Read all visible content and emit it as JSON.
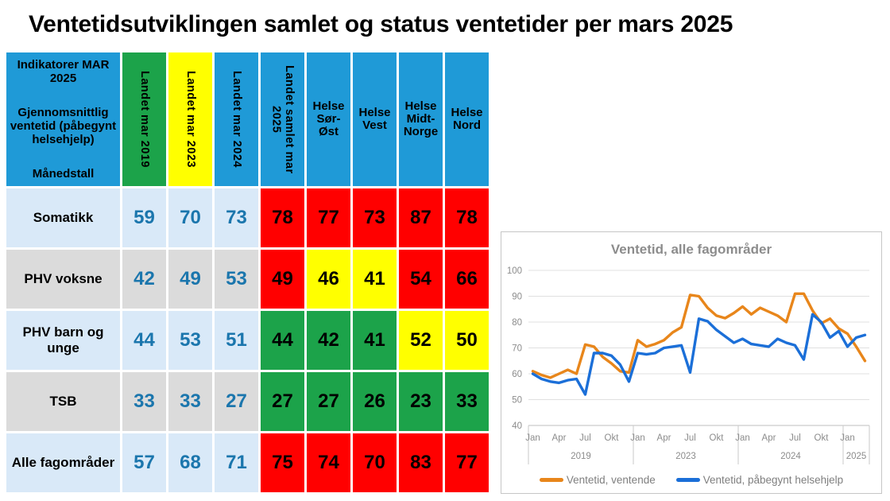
{
  "title": "Ventetidsutviklingen samlet og status ventetider per mars 2025",
  "table": {
    "header": {
      "indicator_lines": [
        "Indikatorer MAR 2025",
        "Gjennomsnittlig ventetid (påbegynt helsehjelp)",
        "Månedstall"
      ],
      "columns": [
        {
          "label": "Landet mar 2019",
          "bg": "green"
        },
        {
          "label": "Landet mar 2023",
          "bg": "yellow"
        },
        {
          "label": "Landet mar 2024",
          "bg": "blue"
        },
        {
          "label": "Landet samlet mar 2025",
          "bg": "blue"
        },
        {
          "label": "Helse Sør-Øst",
          "bg": "blue"
        },
        {
          "label": "Helse Vest",
          "bg": "blue"
        },
        {
          "label": "Helse Midt-Norge",
          "bg": "blue"
        },
        {
          "label": "Helse Nord",
          "bg": "blue"
        }
      ]
    },
    "rows": [
      {
        "label": "Somatikk",
        "zebra": "blue",
        "baseline": [
          "59",
          "70",
          "73"
        ],
        "status": [
          {
            "value": "78",
            "color": "red"
          },
          {
            "value": "77",
            "color": "red"
          },
          {
            "value": "73",
            "color": "red"
          },
          {
            "value": "87",
            "color": "red"
          },
          {
            "value": "78",
            "color": "red"
          }
        ]
      },
      {
        "label": "PHV voksne",
        "zebra": "gray",
        "baseline": [
          "42",
          "49",
          "53"
        ],
        "status": [
          {
            "value": "49",
            "color": "red"
          },
          {
            "value": "46",
            "color": "yellow"
          },
          {
            "value": "41",
            "color": "yellow"
          },
          {
            "value": "54",
            "color": "red"
          },
          {
            "value": "66",
            "color": "red"
          }
        ]
      },
      {
        "label": "PHV barn og unge",
        "zebra": "blue",
        "baseline": [
          "44",
          "53",
          "51"
        ],
        "status": [
          {
            "value": "44",
            "color": "green"
          },
          {
            "value": "42",
            "color": "green"
          },
          {
            "value": "41",
            "color": "green"
          },
          {
            "value": "52",
            "color": "yellow"
          },
          {
            "value": "50",
            "color": "yellow"
          }
        ]
      },
      {
        "label": "TSB",
        "zebra": "gray",
        "baseline": [
          "33",
          "33",
          "27"
        ],
        "status": [
          {
            "value": "27",
            "color": "green"
          },
          {
            "value": "27",
            "color": "green"
          },
          {
            "value": "26",
            "color": "green"
          },
          {
            "value": "23",
            "color": "green"
          },
          {
            "value": "33",
            "color": "green"
          }
        ]
      },
      {
        "label": "Alle fagområder",
        "zebra": "blue",
        "baseline": [
          "57",
          "68",
          "71"
        ],
        "status": [
          {
            "value": "75",
            "color": "red"
          },
          {
            "value": "74",
            "color": "red"
          },
          {
            "value": "70",
            "color": "red"
          },
          {
            "value": "83",
            "color": "red"
          },
          {
            "value": "77",
            "color": "red"
          }
        ]
      }
    ]
  },
  "chart_data": {
    "type": "line",
    "title": "Ventetid, alle fagområder",
    "ylim": [
      40,
      100
    ],
    "y_ticks": [
      100,
      90,
      80,
      70,
      60,
      50,
      40
    ],
    "grid": true,
    "legend_position": "bottom",
    "month_tick_labels": [
      "Jan",
      "Apr",
      "Jul",
      "Okt"
    ],
    "x_groups": [
      {
        "year": "2019",
        "months": 12
      },
      {
        "year": "2023",
        "months": 12
      },
      {
        "year": "2024",
        "months": 12
      },
      {
        "year": "2025",
        "months": 3
      }
    ],
    "series": [
      {
        "name": "Ventetid, ventende",
        "color": "#E8861B",
        "values": [
          61,
          59.5,
          58.5,
          60,
          61.5,
          60,
          71.3,
          70.5,
          66.5,
          64,
          61,
          60.5,
          73,
          70.5,
          71.5,
          73,
          76,
          78,
          90.5,
          90,
          85.5,
          82.5,
          81.5,
          83.5,
          86,
          83,
          85.5,
          84,
          82.5,
          80,
          91,
          91,
          84.5,
          79.5,
          81.3,
          77.5,
          75.5,
          70.5,
          65
        ]
      },
      {
        "name": "Ventetid, påbegynt helsehjelp",
        "color": "#1B6FD8",
        "values": [
          60,
          58,
          57,
          56.5,
          57.5,
          58,
          52,
          68,
          68,
          67,
          63.5,
          57,
          68,
          67.5,
          68,
          70,
          70.5,
          71,
          60.5,
          81.3,
          80.3,
          77,
          74.5,
          72,
          73.5,
          71.5,
          71,
          70.5,
          73.5,
          72,
          71,
          65.5,
          83,
          80,
          74,
          76.5,
          70.5,
          74,
          75
        ]
      }
    ]
  }
}
